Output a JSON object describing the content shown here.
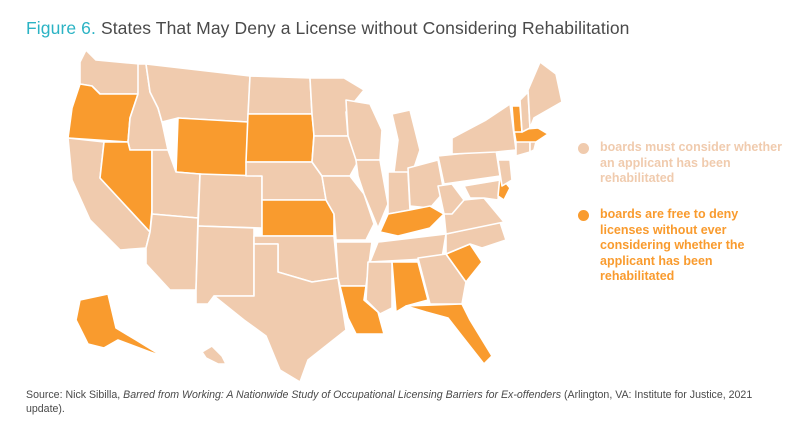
{
  "title": {
    "figure_label": "Figure 6.",
    "text": "States That May Deny a License without Considering Rehabilitation"
  },
  "colors": {
    "must_consider": "#f0cbae",
    "free_to_deny": "#f99b2e",
    "title_accent": "#2bb3c4"
  },
  "legend": [
    {
      "key": "must_consider",
      "label": "boards must consider whether an applicant has been rehabilitated"
    },
    {
      "key": "free_to_deny",
      "label": "boards are free to deny licenses without ever considering whether the applicant has been rehabilitated"
    }
  ],
  "states_free_to_deny": [
    "OR",
    "NV",
    "WY",
    "SD",
    "KS",
    "KY",
    "VT",
    "MA",
    "DE",
    "SC",
    "AL",
    "LA",
    "FL",
    "AK"
  ],
  "source": {
    "prefix": "Source: Nick Sibilla, ",
    "work": "Barred from Working: A Nationwide Study of Occupational Licensing Barriers for Ex-offenders",
    "suffix": " (Arlington, VA: Institute for Justice, 2021 update)."
  }
}
